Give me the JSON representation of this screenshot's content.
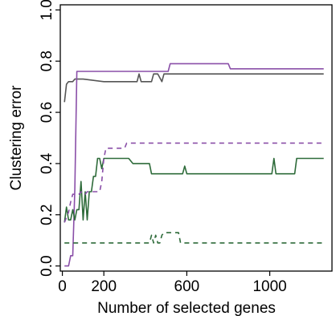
{
  "chart_data": {
    "type": "line",
    "xlabel": "Number of selected genes",
    "ylabel": "Clustering error",
    "xlim": [
      -10,
      1300
    ],
    "ylim": [
      -0.02,
      1.02
    ],
    "x_ticks": [
      0,
      200,
      600,
      1000
    ],
    "x_tick_labels": [
      "0",
      "200",
      "600",
      "1000"
    ],
    "y_ticks": [
      0.0,
      0.2,
      0.4,
      0.6,
      0.8,
      1.0
    ],
    "y_tick_labels": [
      "0.0",
      "0.2",
      "0.4",
      "0.6",
      "0.8",
      "1.0"
    ],
    "grid": false,
    "series": [
      {
        "color": "#555555",
        "dash": "solid",
        "x": [
          10,
          20,
          30,
          50,
          60,
          100,
          200,
          320,
          360,
          370,
          380,
          430,
          440,
          460,
          480,
          490,
          510,
          1260
        ],
        "y": [
          0.64,
          0.71,
          0.72,
          0.72,
          0.73,
          0.73,
          0.72,
          0.72,
          0.72,
          0.75,
          0.72,
          0.72,
          0.75,
          0.75,
          0.72,
          0.75,
          0.75,
          0.75
        ]
      },
      {
        "color": "#8a4fa8",
        "dash": "solid",
        "x": [
          10,
          30,
          40,
          50,
          60,
          70,
          80,
          510,
          520,
          800,
          810,
          1260
        ],
        "y": [
          0.0,
          0.0,
          0.04,
          0.04,
          0.3,
          0.76,
          0.76,
          0.76,
          0.79,
          0.79,
          0.77,
          0.77
        ]
      },
      {
        "color": "#2e6b3a",
        "dash": "solid",
        "x": [
          10,
          20,
          30,
          40,
          50,
          60,
          70,
          80,
          90,
          100,
          110,
          120,
          130,
          140,
          150,
          160,
          170,
          180,
          190,
          200,
          210,
          320,
          340,
          420,
          430,
          580,
          590,
          600,
          1010,
          1020,
          1030,
          1120,
          1130,
          1260
        ],
        "y": [
          0.17,
          0.23,
          0.18,
          0.18,
          0.22,
          0.18,
          0.22,
          0.22,
          0.33,
          0.18,
          0.29,
          0.18,
          0.29,
          0.29,
          0.35,
          0.35,
          0.42,
          0.42,
          0.38,
          0.42,
          0.42,
          0.42,
          0.4,
          0.4,
          0.36,
          0.36,
          0.39,
          0.36,
          0.36,
          0.42,
          0.36,
          0.36,
          0.42,
          0.42
        ]
      },
      {
        "color": "#8a4fa8",
        "dash": "dashed",
        "x": [
          10,
          30,
          40,
          50,
          80,
          90,
          100,
          110,
          120,
          180,
          190,
          200,
          210,
          300,
          310,
          1260
        ],
        "y": [
          0.17,
          0.21,
          0.25,
          0.28,
          0.28,
          0.29,
          0.28,
          0.28,
          0.29,
          0.29,
          0.33,
          0.42,
          0.46,
          0.46,
          0.48,
          0.48
        ]
      },
      {
        "color": "#2e6b3a",
        "dash": "dashed",
        "x": [
          10,
          420,
          430,
          440,
          450,
          460,
          470,
          480,
          490,
          500,
          530,
          540,
          560,
          570,
          580,
          1260
        ],
        "y": [
          0.09,
          0.09,
          0.12,
          0.09,
          0.12,
          0.09,
          0.09,
          0.12,
          0.13,
          0.13,
          0.13,
          0.13,
          0.13,
          0.09,
          0.09,
          0.09
        ]
      }
    ]
  }
}
